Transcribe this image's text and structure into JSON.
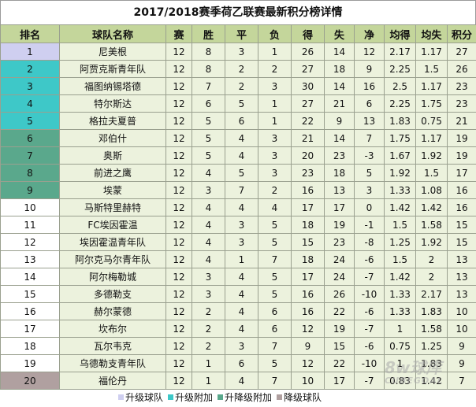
{
  "title": "2017/2018赛季荷乙联赛最新积分榜详情",
  "columns": [
    "排名",
    "球队名称",
    "赛",
    "胜",
    "平",
    "负",
    "得",
    "失",
    "净",
    "均得",
    "均失",
    "积分"
  ],
  "rows": [
    {
      "rank": "1",
      "team": "尼美根",
      "played": "12",
      "won": "8",
      "drawn": "3",
      "lost": "1",
      "gf": "26",
      "ga": "14",
      "gd": "12",
      "avg_gf": "2.17",
      "avg_ga": "1.17",
      "pts": "27",
      "zone": "c-promo"
    },
    {
      "rank": "2",
      "team": "阿贾克斯青年队",
      "played": "12",
      "won": "8",
      "drawn": "2",
      "lost": "2",
      "gf": "27",
      "ga": "18",
      "gd": "9",
      "avg_gf": "2.25",
      "avg_ga": "1.5",
      "pts": "26",
      "zone": "c-promo-extra"
    },
    {
      "rank": "3",
      "team": "福图纳锡塔德",
      "played": "12",
      "won": "7",
      "drawn": "2",
      "lost": "3",
      "gf": "30",
      "ga": "14",
      "gd": "16",
      "avg_gf": "2.5",
      "avg_ga": "1.17",
      "pts": "23",
      "zone": "c-promo-extra"
    },
    {
      "rank": "4",
      "team": "特尔斯达",
      "played": "12",
      "won": "6",
      "drawn": "5",
      "lost": "1",
      "gf": "27",
      "ga": "21",
      "gd": "6",
      "avg_gf": "2.25",
      "avg_ga": "1.75",
      "pts": "23",
      "zone": "c-promo-extra"
    },
    {
      "rank": "5",
      "team": "格拉夫夏普",
      "played": "12",
      "won": "5",
      "drawn": "6",
      "lost": "1",
      "gf": "22",
      "ga": "9",
      "gd": "13",
      "avg_gf": "1.83",
      "avg_ga": "0.75",
      "pts": "21",
      "zone": "c-promo-extra"
    },
    {
      "rank": "6",
      "team": "邓伯什",
      "played": "12",
      "won": "5",
      "drawn": "4",
      "lost": "3",
      "gf": "21",
      "ga": "14",
      "gd": "7",
      "avg_gf": "1.75",
      "avg_ga": "1.17",
      "pts": "19",
      "zone": "c-relegation-extra"
    },
    {
      "rank": "7",
      "team": "奥斯",
      "played": "12",
      "won": "5",
      "drawn": "4",
      "lost": "3",
      "gf": "20",
      "ga": "23",
      "gd": "-3",
      "avg_gf": "1.67",
      "avg_ga": "1.92",
      "pts": "19",
      "zone": "c-relegation-extra"
    },
    {
      "rank": "8",
      "team": "前进之鹰",
      "played": "12",
      "won": "4",
      "drawn": "5",
      "lost": "3",
      "gf": "23",
      "ga": "18",
      "gd": "5",
      "avg_gf": "1.92",
      "avg_ga": "1.5",
      "pts": "17",
      "zone": "c-relegation-extra"
    },
    {
      "rank": "9",
      "team": "埃蒙",
      "played": "12",
      "won": "3",
      "drawn": "7",
      "lost": "2",
      "gf": "16",
      "ga": "13",
      "gd": "3",
      "avg_gf": "1.33",
      "avg_ga": "1.08",
      "pts": "16",
      "zone": "c-relegation-extra"
    },
    {
      "rank": "10",
      "team": "马斯特里赫特",
      "played": "12",
      "won": "4",
      "drawn": "4",
      "lost": "4",
      "gf": "17",
      "ga": "17",
      "gd": "0",
      "avg_gf": "1.42",
      "avg_ga": "1.42",
      "pts": "16",
      "zone": ""
    },
    {
      "rank": "11",
      "team": "FC埃因霍温",
      "played": "12",
      "won": "4",
      "drawn": "3",
      "lost": "5",
      "gf": "18",
      "ga": "19",
      "gd": "-1",
      "avg_gf": "1.5",
      "avg_ga": "1.58",
      "pts": "15",
      "zone": ""
    },
    {
      "rank": "12",
      "team": "埃因霍温青年队",
      "played": "12",
      "won": "4",
      "drawn": "3",
      "lost": "5",
      "gf": "15",
      "ga": "23",
      "gd": "-8",
      "avg_gf": "1.25",
      "avg_ga": "1.92",
      "pts": "15",
      "zone": ""
    },
    {
      "rank": "13",
      "team": "阿尔克马尔青年队",
      "played": "12",
      "won": "4",
      "drawn": "1",
      "lost": "7",
      "gf": "18",
      "ga": "24",
      "gd": "-6",
      "avg_gf": "1.5",
      "avg_ga": "2",
      "pts": "13",
      "zone": ""
    },
    {
      "rank": "14",
      "team": "阿尔梅勒城",
      "played": "12",
      "won": "3",
      "drawn": "4",
      "lost": "5",
      "gf": "17",
      "ga": "24",
      "gd": "-7",
      "avg_gf": "1.42",
      "avg_ga": "2",
      "pts": "13",
      "zone": ""
    },
    {
      "rank": "15",
      "team": "多德勒支",
      "played": "12",
      "won": "3",
      "drawn": "4",
      "lost": "5",
      "gf": "16",
      "ga": "26",
      "gd": "-10",
      "avg_gf": "1.33",
      "avg_ga": "2.17",
      "pts": "13",
      "zone": ""
    },
    {
      "rank": "16",
      "team": "赫尔蒙德",
      "played": "12",
      "won": "2",
      "drawn": "4",
      "lost": "6",
      "gf": "16",
      "ga": "22",
      "gd": "-6",
      "avg_gf": "1.33",
      "avg_ga": "1.83",
      "pts": "10",
      "zone": ""
    },
    {
      "rank": "17",
      "team": "坎布尔",
      "played": "12",
      "won": "2",
      "drawn": "4",
      "lost": "6",
      "gf": "12",
      "ga": "19",
      "gd": "-7",
      "avg_gf": "1",
      "avg_ga": "1.58",
      "pts": "10",
      "zone": ""
    },
    {
      "rank": "18",
      "team": "瓦尔韦克",
      "played": "12",
      "won": "2",
      "drawn": "3",
      "lost": "7",
      "gf": "9",
      "ga": "15",
      "gd": "-6",
      "avg_gf": "0.75",
      "avg_ga": "1.25",
      "pts": "9",
      "zone": ""
    },
    {
      "rank": "19",
      "team": "乌德勒支青年队",
      "played": "12",
      "won": "1",
      "drawn": "6",
      "lost": "5",
      "gf": "12",
      "ga": "22",
      "gd": "-10",
      "avg_gf": "1",
      "avg_ga": "1.83",
      "pts": "9",
      "zone": ""
    },
    {
      "rank": "20",
      "team": "福伦丹",
      "played": "12",
      "won": "1",
      "drawn": "4",
      "lost": "7",
      "gf": "10",
      "ga": "17",
      "gd": "-7",
      "avg_gf": "0.83",
      "avg_ga": "1.42",
      "pts": "7",
      "zone": "c-relegated"
    }
  ],
  "legend": [
    {
      "label": "升级球队",
      "color": "#cfcff0"
    },
    {
      "label": "升级附加",
      "color": "#3ec8c8"
    },
    {
      "label": "升降级附加",
      "color": "#5aa88c"
    },
    {
      "label": "降级球队",
      "color": "#b0a0a0"
    }
  ],
  "colors": {
    "header": "#c4d69b",
    "cell": "#ecf2dd",
    "border": "#9aa08f"
  },
  "watermark": {
    "main": "8w球库",
    "sub": "CUBEGOAL"
  }
}
